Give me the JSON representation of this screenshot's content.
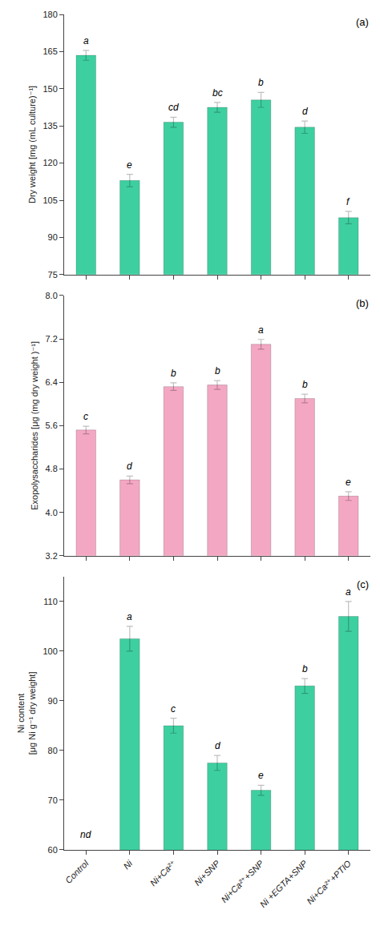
{
  "chart_data": [
    {
      "type": "bar",
      "title": "(a)",
      "ylabel": "Dry weight [mg (mL culture)⁻¹]",
      "categories": [
        "Control",
        "Ni",
        "Ni+Ca²⁺",
        "Ni+SNP",
        "Ni+Ca²⁺+SNP",
        "Ni +EGTA+SNP",
        "Ni+Ca²⁺+PTIO"
      ],
      "values": [
        163.5,
        113.0,
        136.5,
        142.5,
        145.5,
        134.5,
        98.0
      ],
      "errors": [
        2.0,
        2.5,
        2.0,
        2.0,
        3.0,
        2.5,
        2.5
      ],
      "annotations": [
        "a",
        "e",
        "cd",
        "bc",
        "b",
        "d",
        "f"
      ],
      "color": "#3ecfa0",
      "ylim": [
        75,
        180
      ],
      "yticks": [
        75,
        90,
        105,
        120,
        135,
        150,
        165,
        180
      ],
      "grid": false,
      "tick_labels": "y"
    },
    {
      "type": "bar",
      "title": "(b)",
      "ylabel": "Exopolysaccharides [μg (mg dry weight )⁻¹]",
      "categories": [
        "Control",
        "Ni",
        "Ni+Ca²⁺",
        "Ni+SNP",
        "Ni+Ca²⁺+SNP",
        "Ni +EGTA+SNP",
        "Ni+Ca²⁺+PTIO"
      ],
      "values": [
        5.52,
        4.6,
        6.32,
        6.35,
        7.1,
        6.1,
        4.3
      ],
      "errors": [
        0.07,
        0.07,
        0.07,
        0.08,
        0.09,
        0.08,
        0.08
      ],
      "annotations": [
        "c",
        "d",
        "b",
        "b",
        "a",
        "b",
        "e"
      ],
      "color": "#f4a7c3",
      "ylim": [
        3.2,
        8.0
      ],
      "yticks": [
        3.2,
        {
          "value": 4.0,
          "label": "4.0"
        },
        4.8,
        5.6,
        6.4,
        7.2,
        {
          "value": 8.0,
          "label": "8.0"
        }
      ],
      "grid": false,
      "tick_labels": "y"
    },
    {
      "type": "bar",
      "title": "(c)",
      "ylabel": "Ni content\n[μg Ni g⁻¹ dry weight]",
      "categories": [
        "Control",
        "Ni",
        "Ni+Ca²⁺",
        "Ni+SNP",
        "Ni+Ca²⁺+SNP",
        "Ni +EGTA+SNP",
        "Ni+Ca²⁺+PTIO"
      ],
      "values": [
        null,
        102.5,
        85.0,
        77.5,
        72.0,
        93.0,
        107.0
      ],
      "errors": [
        null,
        2.5,
        1.5,
        1.5,
        1.0,
        1.5,
        3.0
      ],
      "annotations": [
        "nd",
        "a",
        "c",
        "d",
        "e",
        "b",
        "a"
      ],
      "color": "#3ecfa0",
      "ylim": [
        60,
        115
      ],
      "yticks": [
        60,
        70,
        80,
        90,
        100,
        110
      ],
      "grid": false
    }
  ]
}
